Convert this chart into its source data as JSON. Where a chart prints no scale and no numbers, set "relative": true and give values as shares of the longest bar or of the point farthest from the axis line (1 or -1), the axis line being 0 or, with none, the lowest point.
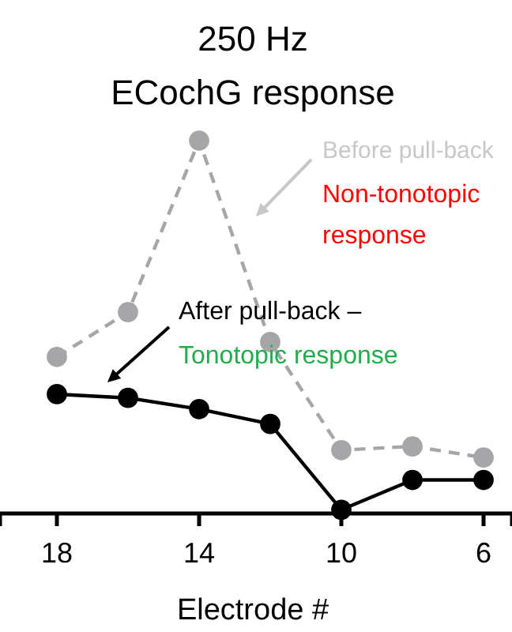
{
  "chart_data": {
    "type": "line",
    "title": "250 Hz\nECochG response",
    "xlabel": "Electrode #",
    "relative": true,
    "marker": "circle",
    "x": [
      18,
      16,
      14,
      12,
      10,
      8,
      6
    ],
    "xlim": [
      19.6,
      5.2
    ],
    "xticks": [
      18,
      14,
      10,
      6
    ],
    "series": [
      {
        "name": "Before pull-back",
        "color": "#a6a6a8",
        "line_style": "dashed",
        "values": [
          0.42,
          0.54,
          1,
          0.46,
          0.17,
          0.18,
          0.15
        ]
      },
      {
        "name": "After pull-back –",
        "color": "#000000",
        "line_style": "solid",
        "values": [
          0.32,
          0.31,
          0.28,
          0.24,
          0.01,
          0.09,
          0.09
        ]
      }
    ],
    "annotations": [
      "Non-tonotopic response",
      "Tonotopic response"
    ]
  }
}
